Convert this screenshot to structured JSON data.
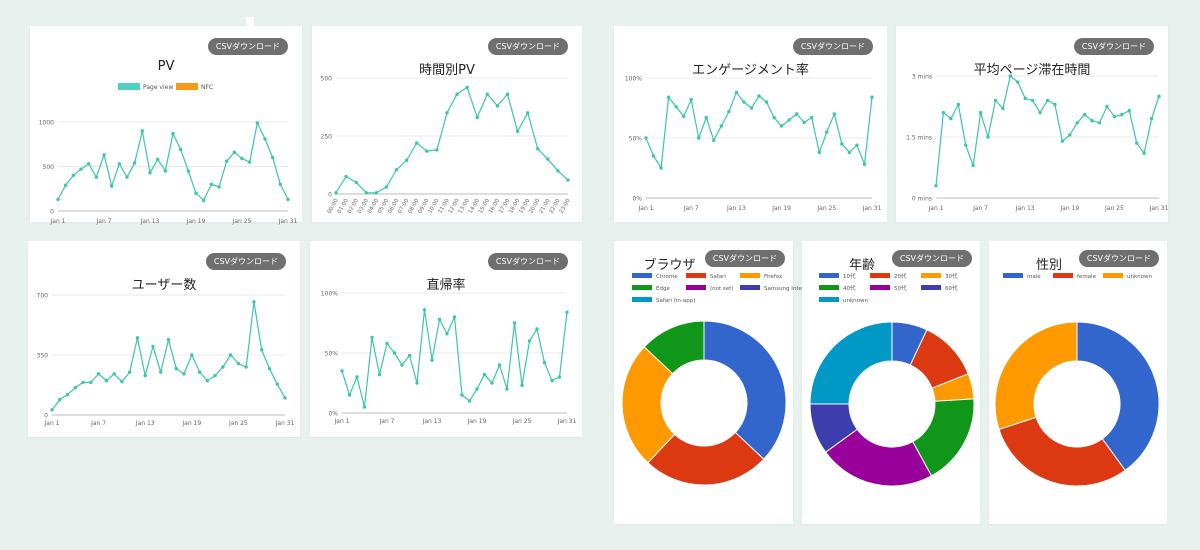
{
  "csv_button_label": "CSVダウンロード",
  "colors": {
    "line": "#3cc6aa",
    "grid": "#e8e8e8",
    "axis": "#bbbbbb",
    "tick": "#666666"
  },
  "cards": {
    "pv": {
      "title": "PV",
      "legend": [
        {
          "label": "Page view",
          "color": "#4fd0c0"
        },
        {
          "label": "NFC",
          "color": "#f59c1a"
        }
      ],
      "chart_data": {
        "type": "line",
        "title": "PV",
        "x_ticks": [
          "Jan 1",
          "Jan 7",
          "Jan 13",
          "Jan 19",
          "Jan 25",
          "Jan 31"
        ],
        "y_ticks": [
          "0",
          "500",
          "1000"
        ],
        "ylim": [
          0,
          1000
        ],
        "series": [
          {
            "name": "Page view",
            "values": [
              130,
              290,
              400,
              470,
              530,
              380,
              630,
              280,
              530,
              380,
              540,
              900,
              430,
              580,
              450,
              870,
              690,
              450,
              200,
              120,
              300,
              270,
              560,
              660,
              590,
              550,
              990,
              810,
              600,
              300,
              130
            ]
          }
        ]
      }
    },
    "hourly_pv": {
      "title": "時間別PV",
      "chart_data": {
        "type": "line",
        "title": "時間別PV",
        "categories": [
          "00:00",
          "01:00",
          "02:00",
          "03:00",
          "04:00",
          "05:00",
          "06:00",
          "07:00",
          "08:00",
          "09:00",
          "10:00",
          "11:00",
          "12:00",
          "13:00",
          "14:00",
          "15:00",
          "16:00",
          "17:00",
          "18:00",
          "19:00",
          "20:00",
          "21:00",
          "22:00",
          "23:00"
        ],
        "y_ticks": [
          "0",
          "250",
          "500"
        ],
        "ylim": [
          0,
          500
        ],
        "values": [
          5,
          75,
          50,
          5,
          5,
          30,
          105,
          145,
          220,
          185,
          190,
          350,
          430,
          460,
          330,
          430,
          380,
          430,
          270,
          350,
          195,
          150,
          100,
          60
        ]
      }
    },
    "users": {
      "title": "ユーザー数",
      "chart_data": {
        "type": "line",
        "title": "ユーザー数",
        "x_ticks": [
          "Jan 1",
          "Jan 7",
          "Jan 13",
          "Jan 19",
          "Jan 25",
          "Jan 31"
        ],
        "y_ticks": [
          "0",
          "350",
          "700"
        ],
        "ylim": [
          0,
          700
        ],
        "values": [
          30,
          90,
          120,
          160,
          190,
          190,
          240,
          200,
          240,
          195,
          250,
          450,
          230,
          400,
          250,
          440,
          270,
          240,
          350,
          250,
          200,
          230,
          280,
          350,
          300,
          280,
          660,
          380,
          270,
          180,
          100
        ]
      }
    },
    "bounce": {
      "title": "直帰率",
      "chart_data": {
        "type": "line",
        "title": "直帰率",
        "x_ticks": [
          "Jan 1",
          "Jan 7",
          "Jan 13",
          "Jan 19",
          "Jan 25",
          "Jan 31"
        ],
        "y_ticks": [
          "0%",
          "50%",
          "100%"
        ],
        "ylim": [
          0,
          100
        ],
        "values": [
          35,
          15,
          30,
          5,
          63,
          32,
          58,
          50,
          40,
          48,
          25,
          86,
          44,
          78,
          66,
          80,
          15,
          10,
          20,
          32,
          25,
          40,
          20,
          75,
          23,
          60,
          70,
          42,
          27,
          30,
          84
        ]
      }
    },
    "engagement": {
      "title": "エンゲージメント率",
      "chart_data": {
        "type": "line",
        "title": "エンゲージメント率",
        "x_ticks": [
          "Jan 1",
          "Jan 7",
          "Jan 13",
          "Jan 19",
          "Jan 25",
          "Jan 31"
        ],
        "y_ticks": [
          "0%",
          "50%",
          "100%"
        ],
        "ylim": [
          0,
          100
        ],
        "values": [
          50,
          35,
          25,
          84,
          76,
          68,
          82,
          50,
          67,
          48,
          60,
          72,
          88,
          80,
          75,
          85,
          80,
          67,
          60,
          65,
          70,
          63,
          67,
          38,
          55,
          70,
          45,
          38,
          44,
          28,
          84
        ]
      }
    },
    "avg_time": {
      "title": "平均ページ滞在時間",
      "chart_data": {
        "type": "line",
        "title": "平均ページ滞在時間",
        "x_ticks": [
          "Jan 1",
          "Jan 7",
          "Jan 13",
          "Jan 19",
          "Jan 25",
          "Jan 31"
        ],
        "y_ticks": [
          "0 mins",
          "1.5 mins",
          "3 mins"
        ],
        "ylim": [
          0,
          3
        ],
        "values": [
          0.3,
          2.1,
          1.95,
          2.3,
          1.3,
          0.8,
          2.1,
          1.5,
          2.4,
          2.2,
          3.0,
          2.85,
          2.45,
          2.4,
          2.1,
          2.4,
          2.3,
          1.4,
          1.55,
          1.85,
          2.05,
          1.9,
          1.85,
          2.25,
          2.0,
          2.05,
          2.15,
          1.35,
          1.1,
          1.95,
          2.5
        ]
      }
    },
    "browser": {
      "title": "ブラウザ",
      "chart_data": {
        "type": "pie",
        "title": "ブラウザ",
        "legend": [
          "Chrome",
          "Safari",
          "Firefox",
          "Edge",
          "(not set)",
          "Samsung Internet",
          "Safari (in-app)"
        ],
        "series": [
          {
            "name": "Chrome",
            "value": 37,
            "color": "#3366cc"
          },
          {
            "name": "Safari",
            "value": 25,
            "color": "#dc3912"
          },
          {
            "name": "Firefox",
            "value": 25,
            "color": "#ff9900"
          },
          {
            "name": "Edge",
            "value": 13,
            "color": "#109618"
          },
          {
            "name": "(not set)",
            "value": 0,
            "color": "#990099"
          },
          {
            "name": "Samsung Internet",
            "value": 0,
            "color": "#3b3eac"
          },
          {
            "name": "Safari (in-app)",
            "value": 0,
            "color": "#0099c6"
          }
        ]
      }
    },
    "age": {
      "title": "年齢",
      "chart_data": {
        "type": "pie",
        "title": "年齢",
        "legend": [
          "10代",
          "20代",
          "30代",
          "40代",
          "50代",
          "60代",
          "unknown"
        ],
        "series": [
          {
            "name": "10代",
            "value": 7,
            "color": "#3366cc"
          },
          {
            "name": "20代",
            "value": 12,
            "color": "#dc3912"
          },
          {
            "name": "30代",
            "value": 5,
            "color": "#ff9900"
          },
          {
            "name": "40代",
            "value": 18,
            "color": "#109618"
          },
          {
            "name": "50代",
            "value": 23,
            "color": "#990099"
          },
          {
            "name": "60代",
            "value": 10,
            "color": "#3b3eac"
          },
          {
            "name": "unknown",
            "value": 25,
            "color": "#0099c6"
          }
        ]
      }
    },
    "gender": {
      "title": "性別",
      "chart_data": {
        "type": "pie",
        "title": "性別",
        "legend": [
          "male",
          "female",
          "unknown"
        ],
        "series": [
          {
            "name": "male",
            "value": 40,
            "color": "#3366cc"
          },
          {
            "name": "female",
            "value": 30,
            "color": "#dc3912"
          },
          {
            "name": "unknown",
            "value": 30,
            "color": "#ff9900"
          }
        ]
      }
    }
  }
}
